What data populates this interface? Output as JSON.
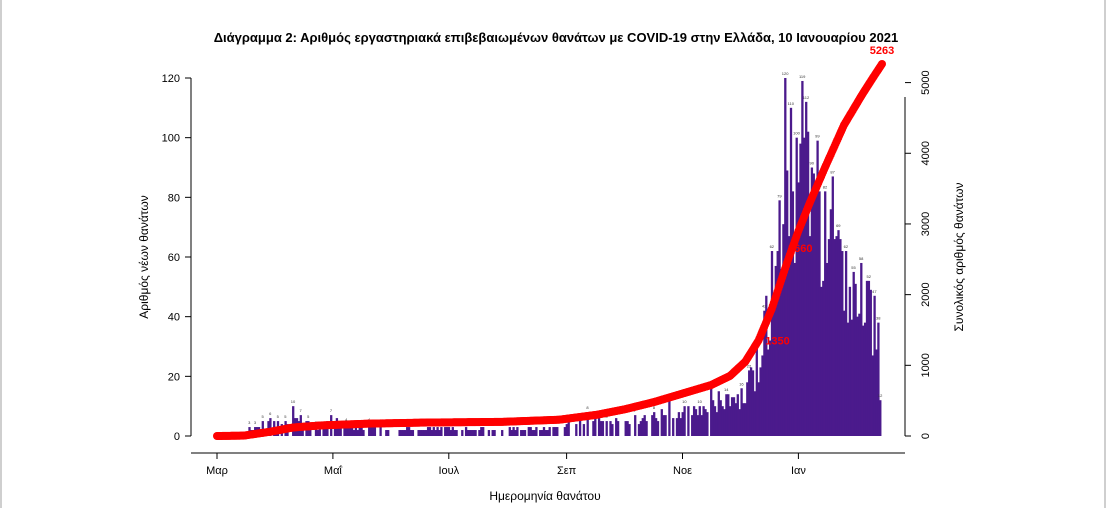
{
  "chart_data": {
    "type": "bar+line",
    "title": "Διάγραμμα 2: Αριθμός εργαστηριακά επιβεβαιωμένων θανάτων με COVID-19 στην Ελλάδα, 10 Ιανουαρίου 2021",
    "xlabel": "Ημερομηνία θανάτου",
    "ylabel_left": "Αριθμός νέων θανάτων",
    "ylabel_right": "Συνολικός αριθμός θανάτων",
    "ylim_left": [
      0,
      120
    ],
    "ylim_right": [
      0,
      5263
    ],
    "yticks_left": [
      "0",
      "20",
      "40",
      "60",
      "80",
      "100",
      "120"
    ],
    "yticks_right": [
      "0",
      "1000",
      "2000",
      "3000",
      "4000",
      "5000"
    ],
    "x_ticks": [
      "Μαρ",
      "Μαΐ",
      "Ιουλ",
      "Σεπ",
      "Νοε",
      "Ιαν"
    ],
    "x_tick_days": [
      0,
      61,
      122,
      184,
      245,
      306
    ],
    "colors": {
      "bars": "#4b1a8c",
      "cumulative": "#ff0000"
    },
    "series": [
      {
        "name": "daily_new_deaths",
        "type": "bar",
        "start_date": "2020-02-26",
        "peaks": [
          {
            "day": 17,
            "value": 3
          },
          {
            "day": 20,
            "value": 3
          },
          {
            "day": 24,
            "value": 5
          },
          {
            "day": 28,
            "value": 6
          },
          {
            "day": 32,
            "value": 5
          },
          {
            "day": 36,
            "value": 5
          },
          {
            "day": 40,
            "value": 10
          },
          {
            "day": 44,
            "value": 7
          },
          {
            "day": 48,
            "value": 5
          },
          {
            "day": 52,
            "value": 3
          },
          {
            "day": 60,
            "value": 7
          },
          {
            "day": 68,
            "value": 4
          },
          {
            "day": 80,
            "value": 4
          },
          {
            "day": 100,
            "value": 3
          },
          {
            "day": 140,
            "value": 3
          },
          {
            "day": 175,
            "value": 3
          },
          {
            "day": 195,
            "value": 8
          },
          {
            "day": 205,
            "value": 5
          },
          {
            "day": 210,
            "value": 6
          },
          {
            "day": 220,
            "value": 7
          },
          {
            "day": 230,
            "value": 8
          },
          {
            "day": 238,
            "value": 12
          },
          {
            "day": 246,
            "value": 10
          },
          {
            "day": 254,
            "value": 10
          },
          {
            "day": 260,
            "value": 16
          },
          {
            "day": 268,
            "value": 14
          },
          {
            "day": 276,
            "value": 16
          },
          {
            "day": 280,
            "value": 22
          },
          {
            "day": 284,
            "value": 30
          },
          {
            "day": 288,
            "value": 42
          },
          {
            "day": 292,
            "value": 62
          },
          {
            "day": 296,
            "value": 79
          },
          {
            "day": 299,
            "value": 120
          },
          {
            "day": 302,
            "value": 110
          },
          {
            "day": 305,
            "value": 100
          },
          {
            "day": 308,
            "value": 119
          },
          {
            "day": 310,
            "value": 112
          },
          {
            "day": 313,
            "value": 90
          },
          {
            "day": 316,
            "value": 99
          },
          {
            "day": 320,
            "value": 82
          },
          {
            "day": 324,
            "value": 87
          },
          {
            "day": 327,
            "value": 69
          },
          {
            "day": 331,
            "value": 62
          },
          {
            "day": 335,
            "value": 55
          },
          {
            "day": 339,
            "value": 58
          },
          {
            "day": 343,
            "value": 52
          },
          {
            "day": 346,
            "value": 47
          },
          {
            "day": 348,
            "value": 38
          },
          {
            "day": 349,
            "value": 12
          }
        ]
      },
      {
        "name": "cumulative_deaths",
        "type": "line",
        "points": [
          {
            "day": 0,
            "value": 0
          },
          {
            "day": 14,
            "value": 5
          },
          {
            "day": 28,
            "value": 60
          },
          {
            "day": 40,
            "value": 120
          },
          {
            "day": 55,
            "value": 150
          },
          {
            "day": 80,
            "value": 175
          },
          {
            "day": 110,
            "value": 190
          },
          {
            "day": 150,
            "value": 200
          },
          {
            "day": 180,
            "value": 230
          },
          {
            "day": 200,
            "value": 300
          },
          {
            "day": 215,
            "value": 380
          },
          {
            "day": 230,
            "value": 480
          },
          {
            "day": 245,
            "value": 600
          },
          {
            "day": 260,
            "value": 720
          },
          {
            "day": 270,
            "value": 850
          },
          {
            "day": 278,
            "value": 1050
          },
          {
            "day": 285,
            "value": 1350
          },
          {
            "day": 292,
            "value": 1800
          },
          {
            "day": 300,
            "value": 2450
          },
          {
            "day": 306,
            "value": 2900
          },
          {
            "day": 312,
            "value": 3300
          },
          {
            "day": 320,
            "value": 3800
          },
          {
            "day": 330,
            "value": 4400
          },
          {
            "day": 340,
            "value": 4850
          },
          {
            "day": 346,
            "value": 5100
          },
          {
            "day": 350,
            "value": 5263
          }
        ],
        "labels": [
          {
            "day": 295,
            "value": 1350,
            "text": "1350"
          },
          {
            "day": 307,
            "value": 2660,
            "text": "2660"
          },
          {
            "day": 350,
            "value": 5263,
            "text": "5263"
          }
        ]
      }
    ]
  }
}
